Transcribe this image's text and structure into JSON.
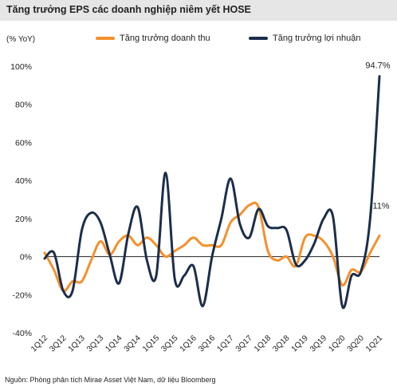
{
  "header": {
    "title": "Tăng trưởng EPS các doanh nghiệp niêm yết HOSE",
    "unit": "(% YoY)"
  },
  "footer": {
    "source": "Nguồn: Phòng phân tích Mirae Asset Việt Nam, dữ liệu Bloomberg"
  },
  "chart_data": {
    "type": "line",
    "title": "Tăng trưởng EPS các doanh nghiệp niêm yết HOSE",
    "ylabel": "(% YoY)",
    "ylim": [
      -40,
      100
    ],
    "yticks": [
      -40,
      -20,
      0,
      20,
      40,
      60,
      80,
      100
    ],
    "ytick_labels": [
      "-40%",
      "-20%",
      "0%",
      "20%",
      "40%",
      "60%",
      "80%",
      "100%"
    ],
    "xtick_labels": [
      "1Q12",
      "3Q12",
      "1Q13",
      "3Q13",
      "1Q14",
      "3Q14",
      "1Q15",
      "3Q15",
      "1Q16",
      "3Q16",
      "1Q17",
      "3Q17",
      "1Q18",
      "3Q18",
      "1Q19",
      "3Q19",
      "1Q20",
      "3Q20",
      "1Q21"
    ],
    "grid": false,
    "legend_position": "top",
    "colors": {
      "revenue": "#f4902c",
      "profit": "#1b2e4b"
    },
    "series": [
      {
        "name": "Tăng trưởng doanh thu",
        "key": "revenue",
        "values": [
          2,
          -7,
          -18,
          -13,
          -13,
          -2,
          8,
          1,
          8,
          11,
          6,
          10,
          6,
          0,
          3,
          6,
          10,
          6,
          6,
          6,
          18,
          22,
          27,
          26,
          3,
          -2,
          0,
          -5,
          10,
          11,
          8,
          0,
          -15,
          -7,
          -8,
          2,
          11
        ]
      },
      {
        "name": "Tăng trưởng lợi nhuận",
        "key": "profit",
        "values": [
          -1,
          2,
          -18,
          -18,
          14,
          23,
          18,
          1,
          -14,
          12,
          26,
          -2,
          -10,
          44,
          -12,
          -10,
          -5,
          -26,
          0,
          20,
          41,
          17,
          10,
          25,
          16,
          15,
          14,
          -4,
          -2,
          7,
          20,
          21,
          -26,
          -10,
          -8,
          20,
          94.7
        ]
      }
    ],
    "annotations": [
      {
        "series": "profit",
        "label": "94.7%"
      },
      {
        "series": "revenue",
        "label": "11%"
      }
    ]
  }
}
